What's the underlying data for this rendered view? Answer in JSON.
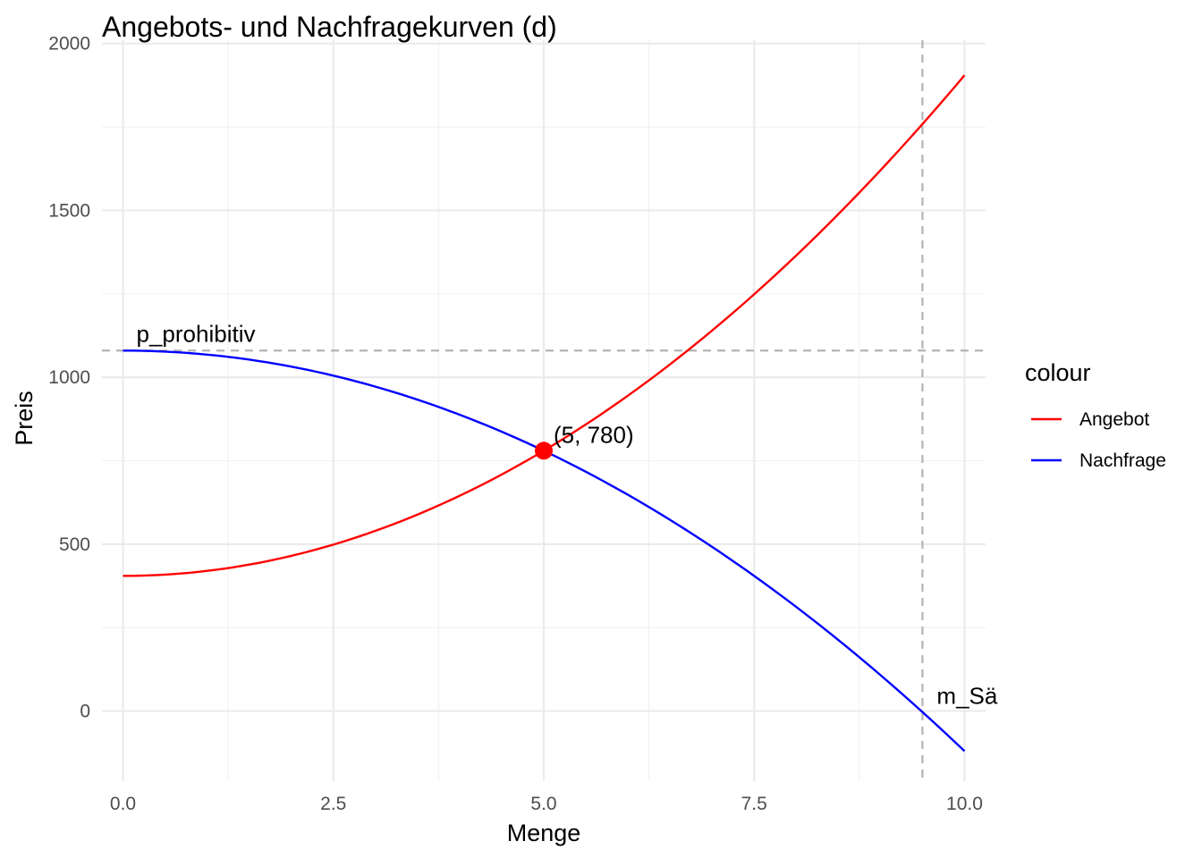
{
  "chart_data": {
    "type": "line",
    "title": "Angebots- und Nachfragekurven (d)",
    "xlabel": "Menge",
    "ylabel": "Preis",
    "xlim": [
      -0.25,
      10.25
    ],
    "ylim": [
      -210,
      2010
    ],
    "x_ticks": [
      0,
      2.5,
      5,
      7.5,
      10
    ],
    "x_tick_labels": [
      "0.0",
      "2.5",
      "5.0",
      "7.5",
      "10.0"
    ],
    "y_ticks": [
      0,
      500,
      1000,
      1500,
      2000
    ],
    "y_tick_labels": [
      "0",
      "500",
      "1000",
      "1500",
      "2000"
    ],
    "grid": true,
    "legend": {
      "title": "colour",
      "position": "right"
    },
    "series": [
      {
        "name": "Angebot",
        "color": "#ff0000",
        "x": [
          0,
          1,
          2,
          3,
          4,
          5,
          6,
          7,
          8,
          9,
          10
        ],
        "y": [
          405,
          420,
          465,
          540,
          645,
          780,
          945,
          1140,
          1365,
          1620,
          1905
        ]
      },
      {
        "name": "Nachfrage",
        "color": "#0000ff",
        "x": [
          0,
          1,
          2,
          3,
          4,
          5,
          6,
          7,
          8,
          9,
          10
        ],
        "y": [
          1080,
          1068,
          1032,
          972,
          888,
          780,
          648,
          492,
          312,
          108,
          -120
        ]
      }
    ],
    "reference_lines": [
      {
        "orientation": "horizontal",
        "value": 1080,
        "label": "p_prohibitiv",
        "color": "#b3b3b3"
      },
      {
        "orientation": "vertical",
        "value": 9.5,
        "label": "m_Sä",
        "color": "#b3b3b3"
      }
    ],
    "equilibrium": {
      "x": 5,
      "y": 780,
      "label": "(5, 780)",
      "color": "#ff0000"
    }
  }
}
